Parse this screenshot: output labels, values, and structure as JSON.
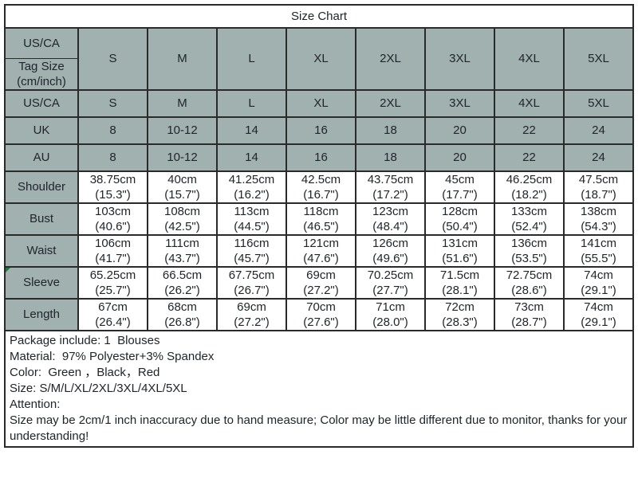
{
  "colors": {
    "header_bg": "#a0b1b0",
    "border": "#2a2a2a",
    "text": "#21252b",
    "page_bg": "#ffffff",
    "marker_green": "#1f7a33"
  },
  "table": {
    "title": "Size Chart",
    "header": {
      "corner_top": "US/CA",
      "corner_bottom": "Tag Size\n(cm/inch)",
      "sizes": [
        "S",
        "M",
        "L",
        "XL",
        "2XL",
        "3XL",
        "4XL",
        "5XL"
      ]
    },
    "size_rows": [
      {
        "label": "US/CA",
        "values": [
          "S",
          "M",
          "L",
          "XL",
          "2XL",
          "3XL",
          "4XL",
          "5XL"
        ]
      },
      {
        "label": "UK",
        "values": [
          "8",
          "10-12",
          "14",
          "16",
          "18",
          "20",
          "22",
          "24"
        ]
      },
      {
        "label": "AU",
        "values": [
          "8",
          "10-12",
          "14",
          "16",
          "18",
          "20",
          "22",
          "24"
        ]
      }
    ],
    "measure_rows": [
      {
        "label": "Shoulder",
        "values": [
          "38.75cm\n(15.3\")",
          "40cm\n(15.7\")",
          "41.25cm\n(16.2\")",
          "42.5cm\n(16.7\")",
          "43.75cm\n(17.2\")",
          "45cm\n(17.7\")",
          "46.25cm\n(18.2\")",
          "47.5cm\n(18.7\")"
        ]
      },
      {
        "label": "Bust",
        "values": [
          "103cm\n(40.6\")",
          "108cm\n(42.5\")",
          "113cm\n(44.5\")",
          "118cm\n(46.5\")",
          "123cm\n(48.4\")",
          "128cm\n(50.4\")",
          "133cm\n(52.4\")",
          "138cm\n(54.3\")"
        ]
      },
      {
        "label": "Waist",
        "values": [
          "106cm\n(41.7\")",
          "111cm\n(43.7\")",
          "116cm\n(45.7\")",
          "121cm\n(47.6\")",
          "126cm\n(49.6\")",
          "131cm\n(51.6\")",
          "136cm\n(53.5\")",
          "141cm\n(55.5\")"
        ]
      },
      {
        "label": "Sleeve",
        "values": [
          "65.25cm\n(25.7\")",
          "66.5cm\n(26.2\")",
          "67.75cm\n(26.7\")",
          "69cm\n(27.2\")",
          "70.25cm\n(27.7\")",
          "71.5cm\n(28.1\")",
          "72.75cm\n(28.6\")",
          "74cm\n(29.1\")"
        ]
      },
      {
        "label": "Length",
        "values": [
          "67cm\n(26.4\")",
          "68cm\n(26.8\")",
          "69cm\n(27.2\")",
          "70cm\n(27.6\")",
          "71cm\n(28.0\")",
          "72cm\n(28.3\")",
          "73cm\n(28.7\")",
          "74cm\n(29.1\")"
        ]
      }
    ]
  },
  "notes": {
    "lines": [
      "Package include: 1  Blouses",
      "Material:  97% Polyester+3% Spandex",
      "Color:  Green ，Black，Red",
      "Size: S/M/L/XL/2XL/3XL/4XL/5XL",
      "Attention:",
      "Size may be 2cm/1 inch inaccuracy due to hand measure; Color may be little different due to monitor, thanks for your understanding!"
    ]
  }
}
